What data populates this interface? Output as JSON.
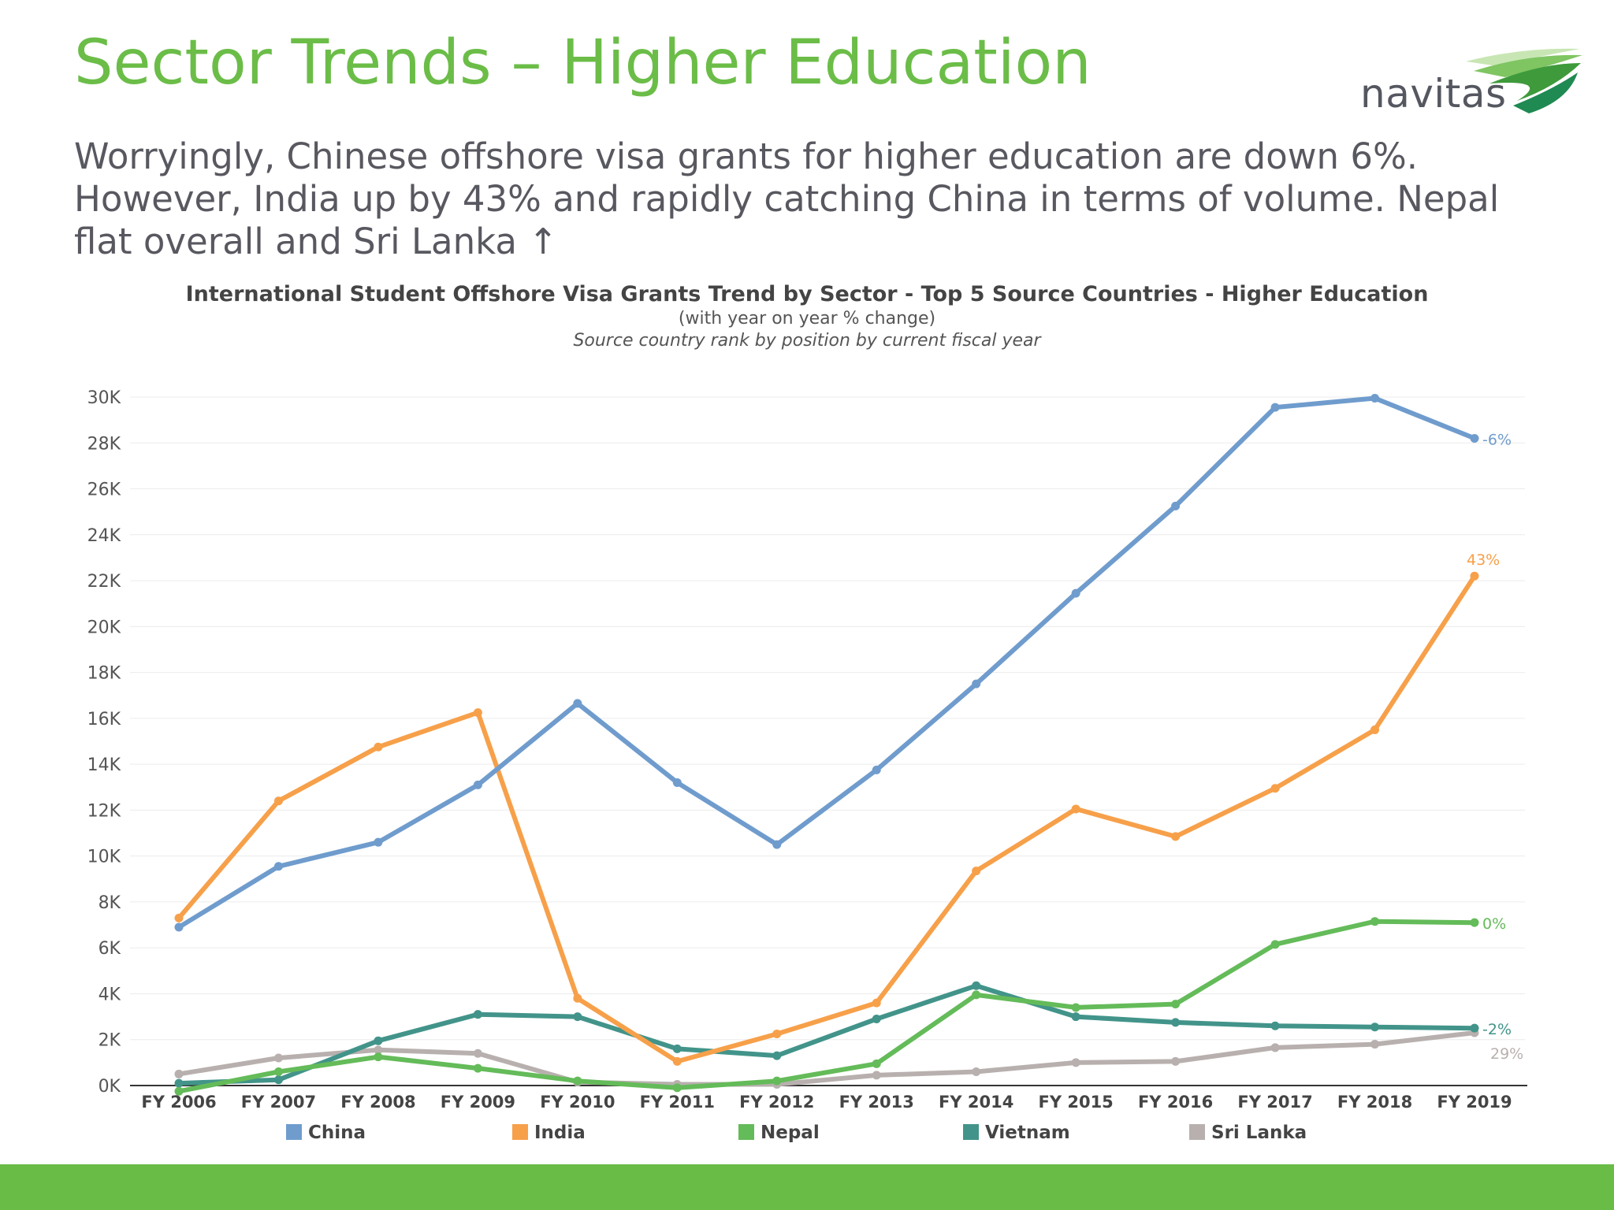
{
  "slide": {
    "title": "Sector Trends – Higher Education",
    "subtitle": "Worryingly, Chinese offshore visa grants for higher education are down 6%. However, India up by 43% and rapidly catching China in terms of volume. Nepal flat overall and Sri Lanka ↑",
    "logo_text": "navitas"
  },
  "colors": {
    "title": "#6bbd48",
    "footer": "#69bc45",
    "china": "#6f9ccd",
    "india": "#f7a04a",
    "nepal": "#64bb59",
    "vietnam": "#42948a",
    "sri_lanka": "#b8b0ae"
  },
  "chart_data": {
    "type": "line",
    "title": "International Student Offshore Visa Grants Trend by Sector - Top 5 Source Countries - Higher Education",
    "subtitle": "(with year on year % change)",
    "note": "Source country rank by position by current fiscal year",
    "categories": [
      "FY 2006",
      "FY 2007",
      "FY 2008",
      "FY 2009",
      "FY 2010",
      "FY 2011",
      "FY 2012",
      "FY 2013",
      "FY 2014",
      "FY 2015",
      "FY 2016",
      "FY 2017",
      "FY 2018",
      "FY 2019"
    ],
    "y_ticks": [
      "0K",
      "2K",
      "4K",
      "6K",
      "8K",
      "10K",
      "12K",
      "14K",
      "16K",
      "18K",
      "20K",
      "22K",
      "24K",
      "26K",
      "28K",
      "30K"
    ],
    "ylim": [
      0,
      30000
    ],
    "legend_position": "bottom",
    "grid": true,
    "series": [
      {
        "name": "China",
        "color": "#6f9ccd",
        "values": [
          6900,
          9550,
          10600,
          13100,
          16650,
          13200,
          10500,
          13750,
          17500,
          21450,
          25250,
          29550,
          29950,
          28200
        ],
        "end_label": "-6%"
      },
      {
        "name": "India",
        "color": "#f7a04a",
        "values": [
          7300,
          12400,
          14750,
          16250,
          3800,
          1050,
          2250,
          3600,
          9350,
          12050,
          10850,
          12950,
          15500,
          22200
        ],
        "end_label": "43%"
      },
      {
        "name": "Nepal",
        "color": "#64bb59",
        "values": [
          -250,
          600,
          1250,
          750,
          200,
          -100,
          200,
          950,
          3950,
          3400,
          3550,
          6150,
          7150,
          7100
        ],
        "end_label": "0%"
      },
      {
        "name": "Vietnam",
        "color": "#42948a",
        "values": [
          100,
          250,
          1950,
          3100,
          3000,
          1600,
          1300,
          2900,
          4350,
          3000,
          2750,
          2600,
          2550,
          2500
        ],
        "end_label": "-2%"
      },
      {
        "name": "Sri Lanka",
        "color": "#b8b0ae",
        "values": [
          500,
          1200,
          1550,
          1400,
          150,
          50,
          50,
          450,
          600,
          1000,
          1050,
          1650,
          1800,
          2300
        ],
        "end_label": "29%"
      }
    ]
  }
}
